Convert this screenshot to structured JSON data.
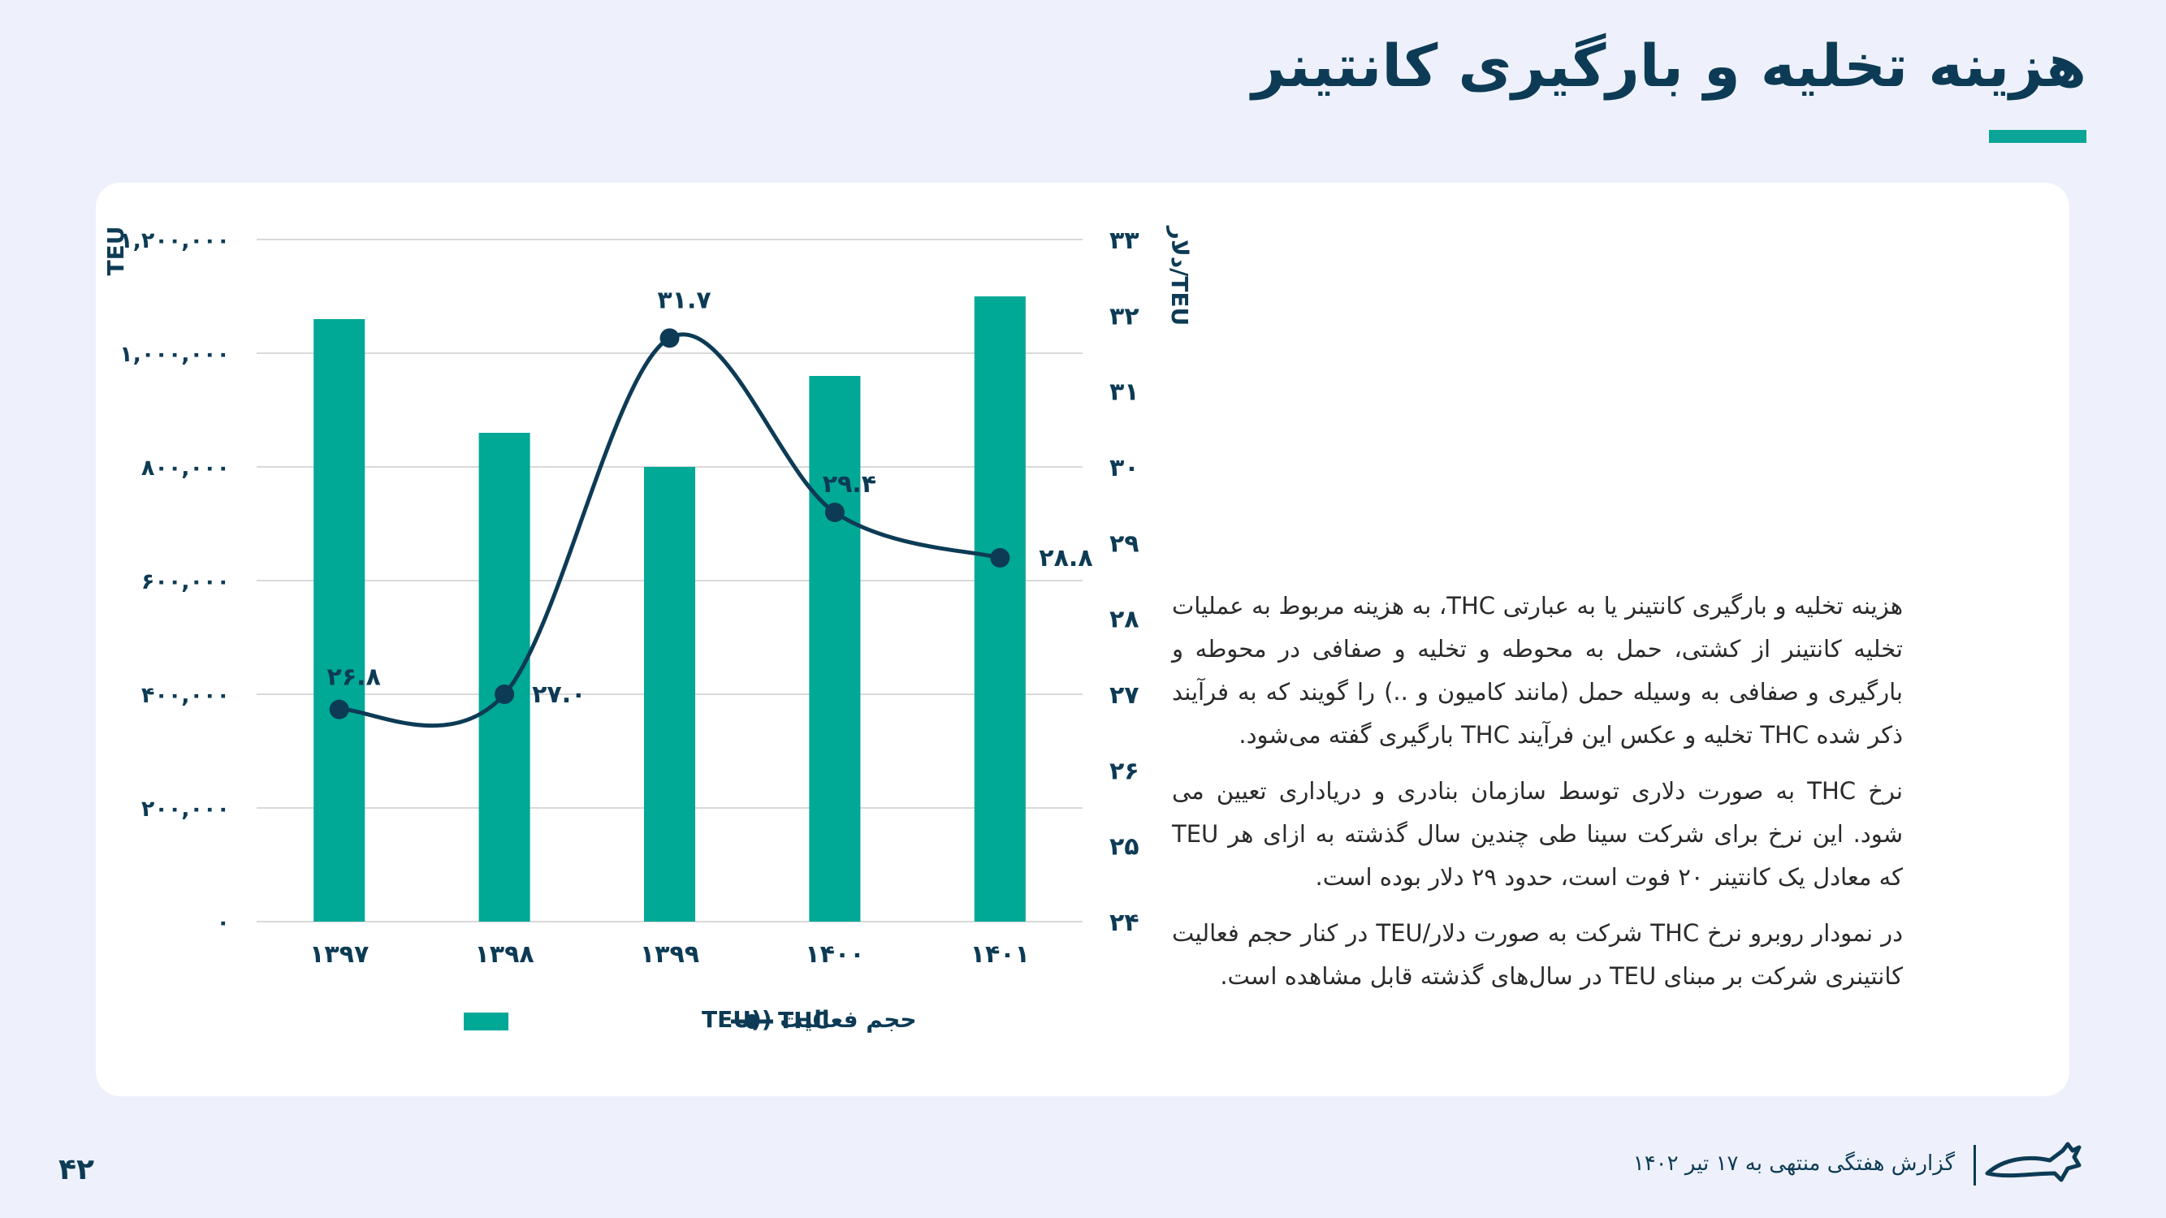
{
  "header": {
    "title": "هزینه تخلیه و بارگیری کانتینر"
  },
  "chart_data": {
    "type": "bar",
    "categories": [
      "۱۳۹۷",
      "۱۳۹۸",
      "۱۳۹۹",
      "۱۴۰۰",
      "۱۴۰۱"
    ],
    "series": [
      {
        "name": "حجم فعالیت ((TEU",
        "type": "bar",
        "axis": "left",
        "color": "#00a896",
        "values": [
          1060000,
          860000,
          800000,
          960000,
          1100000
        ]
      },
      {
        "name": "THC",
        "type": "line",
        "axis": "right",
        "color": "#0d3b55",
        "values": [
          26.8,
          27.0,
          31.7,
          29.4,
          28.8
        ],
        "labels": [
          "۲۶.۸",
          "۲۷.۰",
          "۳۱.۷",
          "۲۹.۴",
          "۲۸.۸"
        ]
      }
    ],
    "left_axis": {
      "label": "TEU",
      "ylim": [
        0,
        1200000
      ],
      "ticks": [
        0,
        200000,
        400000,
        600000,
        800000,
        1000000,
        1200000
      ],
      "tick_labels": [
        "۰",
        "۲۰۰,۰۰۰",
        "۴۰۰,۰۰۰",
        "۶۰۰,۰۰۰",
        "۸۰۰,۰۰۰",
        "۱,۰۰۰,۰۰۰",
        "۱,۲۰۰,۰۰۰"
      ]
    },
    "right_axis": {
      "label": "دلار/TEU",
      "ylim": [
        24,
        33
      ],
      "ticks": [
        24,
        25,
        26,
        27,
        28,
        29,
        30,
        31,
        32,
        33
      ],
      "tick_labels": [
        "۲۴",
        "۲۵",
        "۲۶",
        "۲۷",
        "۲۸",
        "۲۹",
        "۳۰",
        "۳۱",
        "۳۲",
        "۳۳"
      ]
    },
    "grid": true,
    "legend_position": "bottom"
  },
  "description": {
    "paragraphs": [
      "هزینه تخلیه و بارگیری کانتینر یا به عبارتی THC، به هزینه مربوط به عملیات تخلیه کانتینر از کشتی، حمل به محوطه و تخلیه و صفافی در محوطه و بارگیری و صفافی به وسیله حمل (مانند کامیون و ..) را گویند که به فرآیند ذکر شده THC تخلیه و عکس این فرآیند THC بارگیری گفته می‌شود.",
      "نرخ THC به صورت دلاری توسط سازمان بنادری و دریاداری تعیین می شود. این نرخ برای شرکت سینا طی چندین سال گذشته به ازای هر TEU که معادل یک کانتینر ۲۰ فوت است، حدود ۲۹ دلار بوده است.",
      "در نمودار روبرو نرخ THC شرکت به صورت دلار/TEU در کنار حجم فعالیت کانتینری شرکت بر مبنای TEU در سال‌های گذشته قابل مشاهده است."
    ]
  },
  "footer": {
    "page_number": "۴۲",
    "report_text": "گزارش هفتگی منتهی به ۱۷ تیر ۱۴۰۲",
    "logo_icon": "bull-logo-icon"
  }
}
